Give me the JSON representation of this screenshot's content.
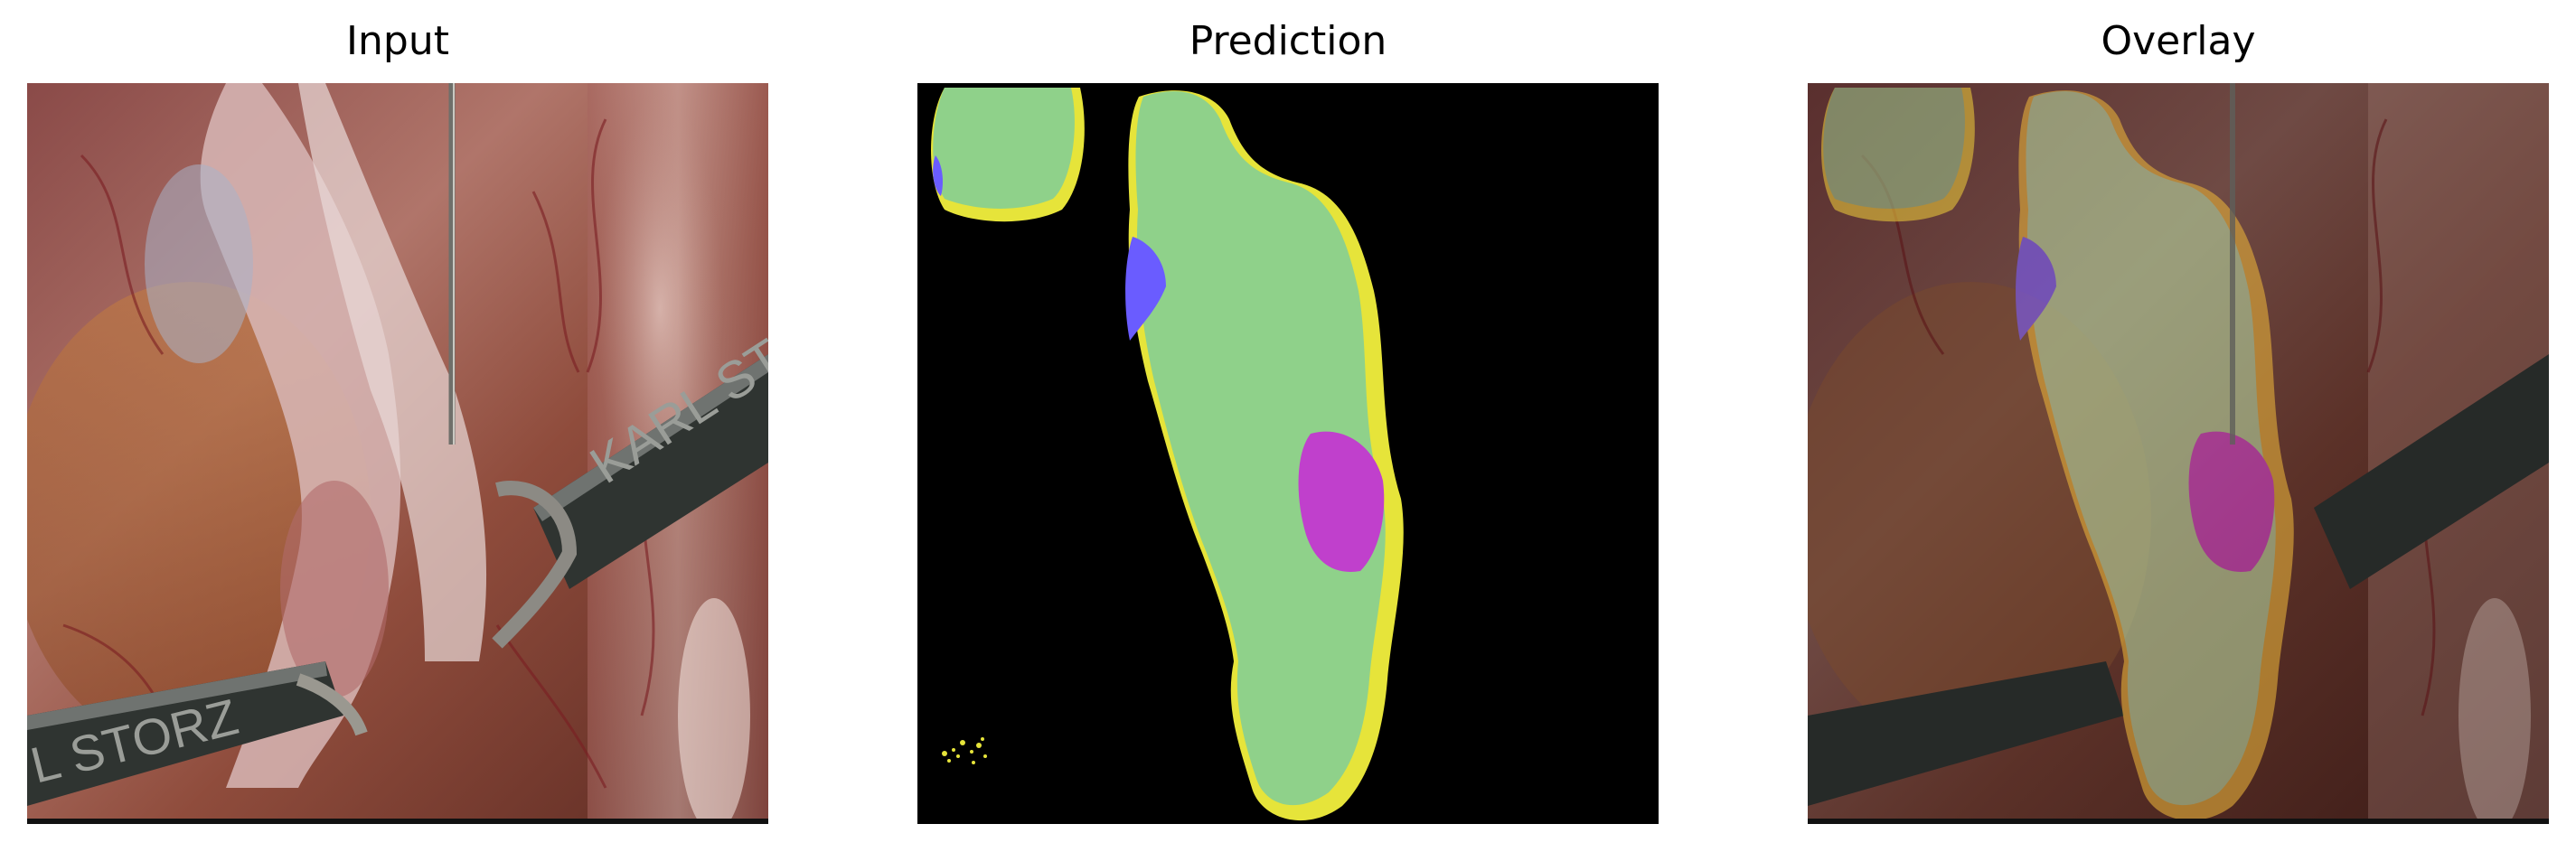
{
  "panels": {
    "input": {
      "title": "Input"
    },
    "prediction": {
      "title": "Prediction"
    },
    "overlay": {
      "title": "Overlay"
    }
  },
  "instrument_text": {
    "brand_right": "KARL STORZ",
    "brand_left": "L STORZ"
  },
  "colors": {
    "background": "#000000",
    "region_green": "#8fd18a",
    "region_yellow": "#e6e43a",
    "region_blue": "#6a5cff",
    "region_magenta": "#c040cc"
  }
}
